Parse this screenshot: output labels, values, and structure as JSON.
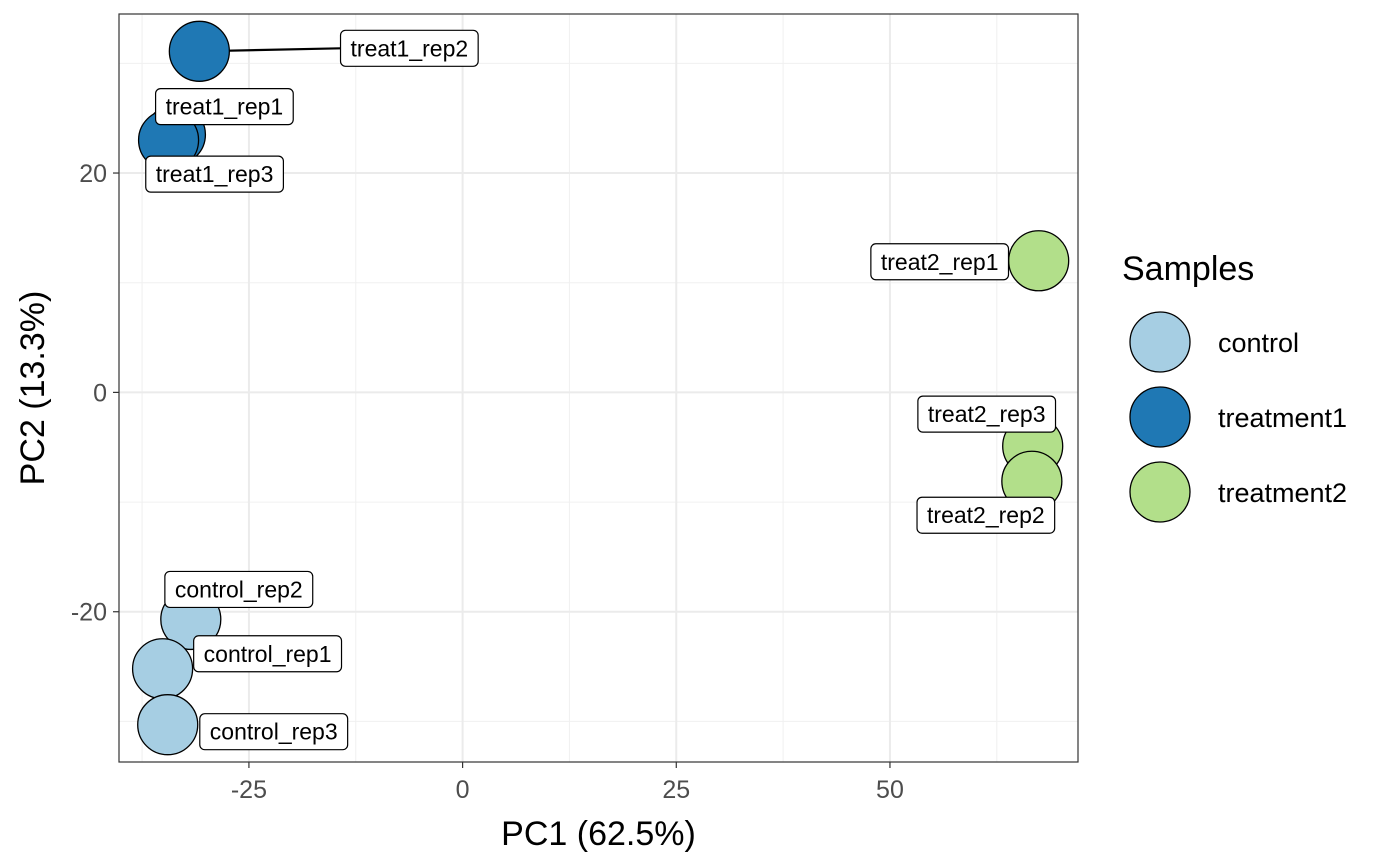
{
  "chart_data": {
    "type": "scatter",
    "title": "",
    "xlabel": "PC1 (62.5%)",
    "ylabel": "PC2 (13.3%)",
    "xlim": [
      -40.2,
      72
    ],
    "ylim": [
      -33.7,
      34.5
    ],
    "xticks": [
      -25,
      0,
      25,
      50
    ],
    "xtick_labels": [
      "-25",
      "0",
      "25",
      "50"
    ],
    "yticks": [
      -20,
      0,
      20
    ],
    "ytick_labels": [
      "-20",
      "0",
      "20"
    ],
    "grid": true,
    "legend_position": "right",
    "legend_title": "Samples",
    "groups": [
      {
        "name": "control",
        "color": "#a6cee3"
      },
      {
        "name": "treatment1",
        "color": "#1f78b4"
      },
      {
        "name": "treatment2",
        "color": "#b2df8a"
      }
    ],
    "points": [
      {
        "label": "control_rep1",
        "group": "control",
        "x": -35.1,
        "y": -25.2
      },
      {
        "label": "control_rep2",
        "group": "control",
        "x": -31.8,
        "y": -20.7
      },
      {
        "label": "control_rep3",
        "group": "control",
        "x": -34.5,
        "y": -30.3
      },
      {
        "label": "treat1_rep1",
        "group": "treatment1",
        "x": -33.6,
        "y": 23.5
      },
      {
        "label": "treat1_rep2",
        "group": "treatment1",
        "x": -30.8,
        "y": 31.1
      },
      {
        "label": "treat1_rep3",
        "group": "treatment1",
        "x": -34.4,
        "y": 23.0
      },
      {
        "label": "treat2_rep1",
        "group": "treatment2",
        "x": 67.4,
        "y": 12.0
      },
      {
        "label": "treat2_rep2",
        "group": "treatment2",
        "x": 66.6,
        "y": -8.1
      },
      {
        "label": "treat2_rep3",
        "group": "treatment2",
        "x": 66.7,
        "y": -4.9
      }
    ]
  }
}
